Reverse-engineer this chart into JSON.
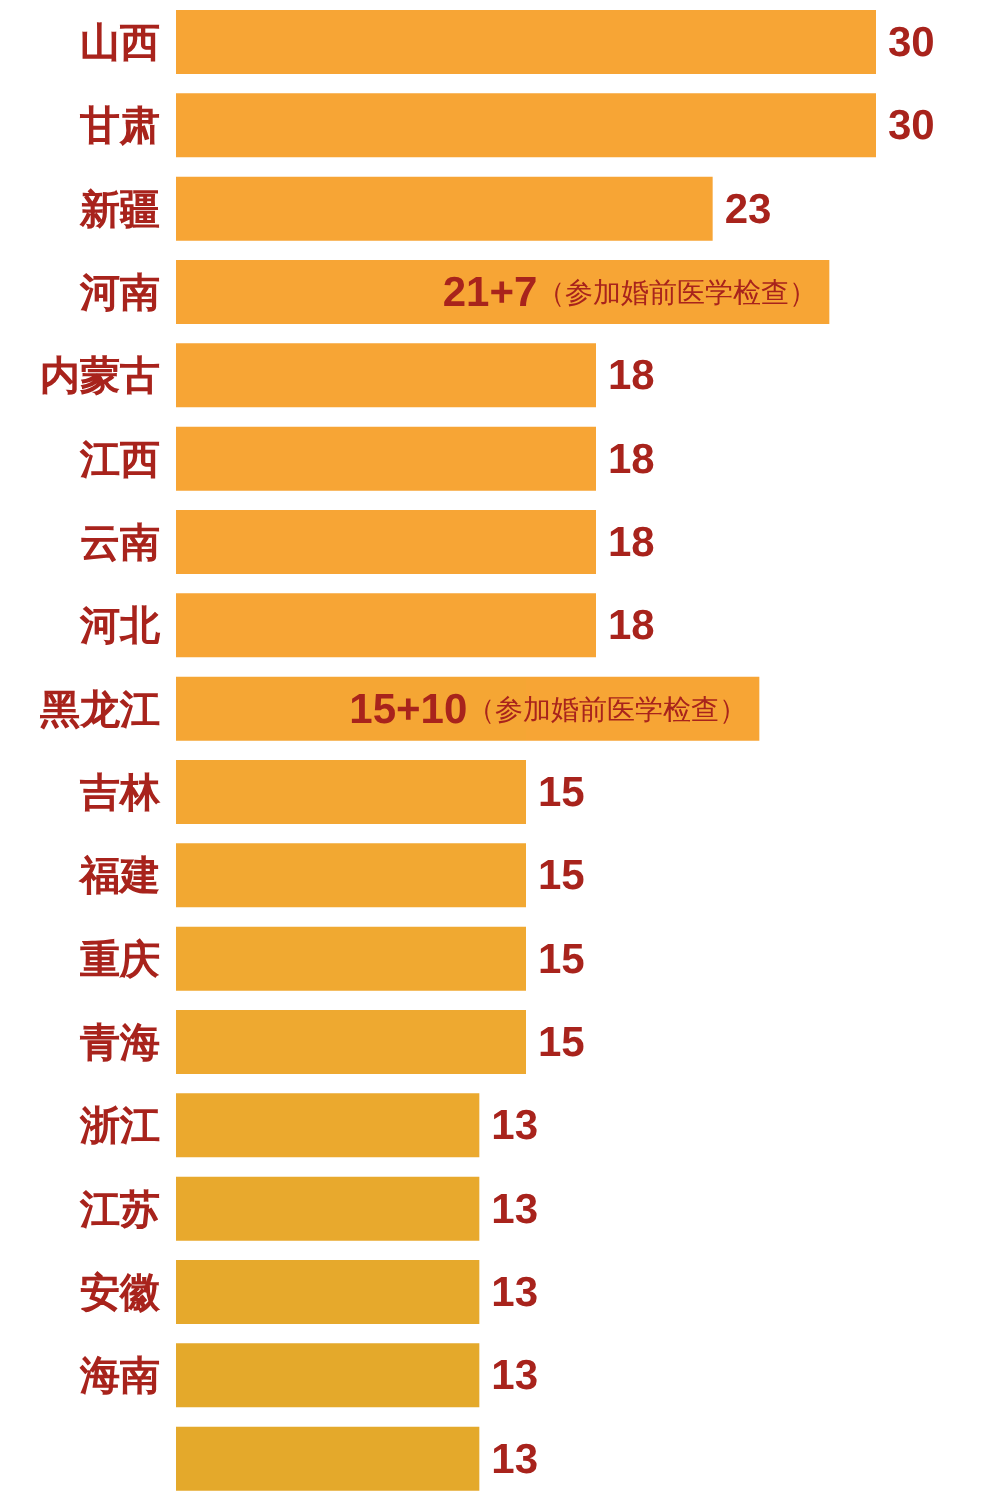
{
  "chart_data": {
    "type": "bar",
    "orientation": "horizontal",
    "stacked": true,
    "categories": [
      "山西",
      "甘肃",
      "新疆",
      "河南",
      "内蒙古",
      "江西",
      "云南",
      "河北",
      "黑龙江",
      "吉林",
      "福建",
      "重庆",
      "青海",
      "浙江",
      "江苏",
      "安徽",
      "海南",
      null
    ],
    "series": [
      {
        "values": [
          30,
          30,
          23,
          21,
          18,
          18,
          18,
          18,
          15,
          15,
          15,
          15,
          15,
          13,
          13,
          13,
          13,
          13
        ],
        "value_labels": [
          "30",
          "30",
          "23",
          null,
          "18",
          "18",
          "18",
          "18",
          null,
          "15",
          "15",
          "15",
          "15",
          "13",
          "13",
          "13",
          "13",
          "13"
        ],
        "colors": [
          "#f7a535",
          "#f7a535",
          "#f7a535",
          "#f7a535",
          "#f7a535",
          "#f7a535",
          "#f7a535",
          "#f7a535",
          "#f5a634",
          "#f3a733",
          "#f2a832",
          "#f0a931",
          "#eea930",
          "#eba92e",
          "#e8a92d",
          "#e6a92c",
          "#e4a92b",
          "#e4a92b"
        ]
      },
      {
        "values": [
          null,
          null,
          null,
          7,
          null,
          null,
          null,
          null,
          10,
          null,
          null,
          null,
          null,
          null,
          null,
          null,
          null,
          null
        ],
        "value_labels": [
          null,
          null,
          null,
          "21+7（参加婚前医学检查）",
          null,
          null,
          null,
          null,
          "15+10（参加婚前医学检查）",
          null,
          null,
          null,
          null,
          null,
          null,
          null,
          null,
          null
        ],
        "color": "#f7a535"
      }
    ],
    "grid": false,
    "legend": false
  }
}
